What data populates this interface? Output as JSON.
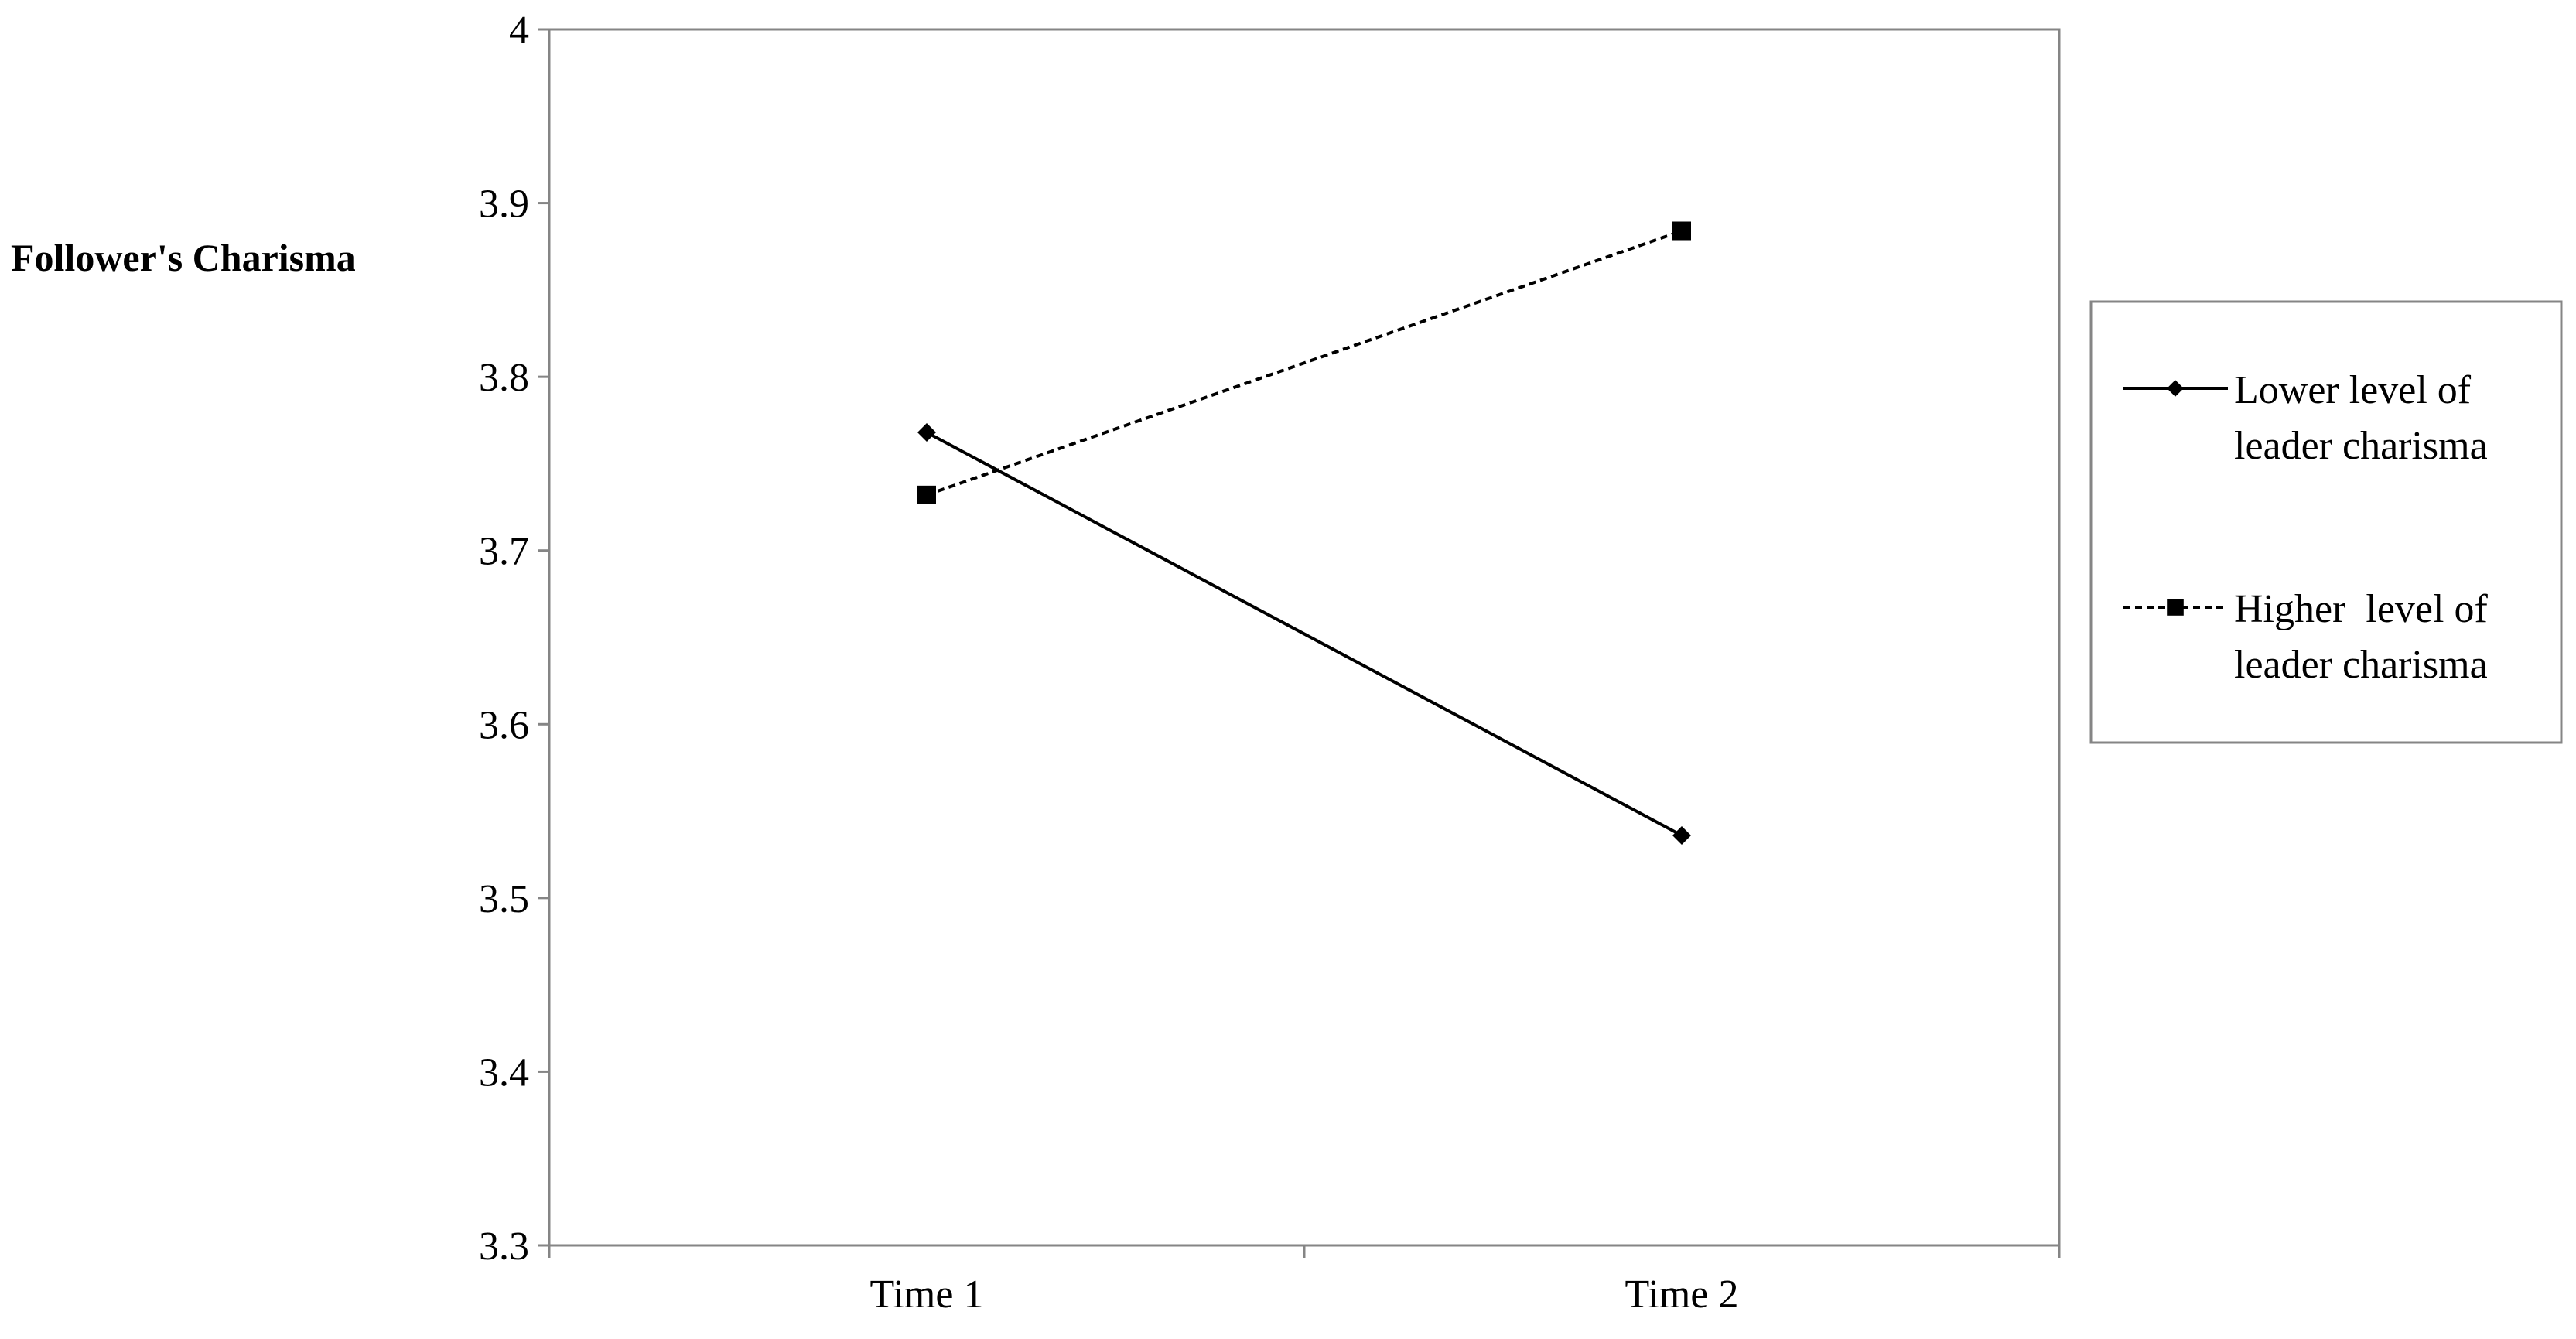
{
  "chart_data": {
    "type": "line",
    "title": "",
    "xlabel": "",
    "ylabel": "Follower's Charisma",
    "categories": [
      "Time 1",
      "Time 2"
    ],
    "ylim": [
      3.3,
      4
    ],
    "yticks": [
      "3.3",
      "3.4",
      "3.5",
      "3.6",
      "3.7",
      "3.8",
      "3.9",
      "4"
    ],
    "grid": false,
    "legend_position": "right",
    "series": [
      {
        "name_lines": [
          "Lower level of",
          "leader charisma"
        ],
        "values": [
          3.768,
          3.536
        ],
        "line_style": "solid",
        "marker": "diamond",
        "color": "#000000"
      },
      {
        "name_lines": [
          "Higher  level of",
          "leader charisma"
        ],
        "values": [
          3.732,
          3.884
        ],
        "line_style": "dashed",
        "marker": "square",
        "color": "#000000"
      }
    ]
  }
}
